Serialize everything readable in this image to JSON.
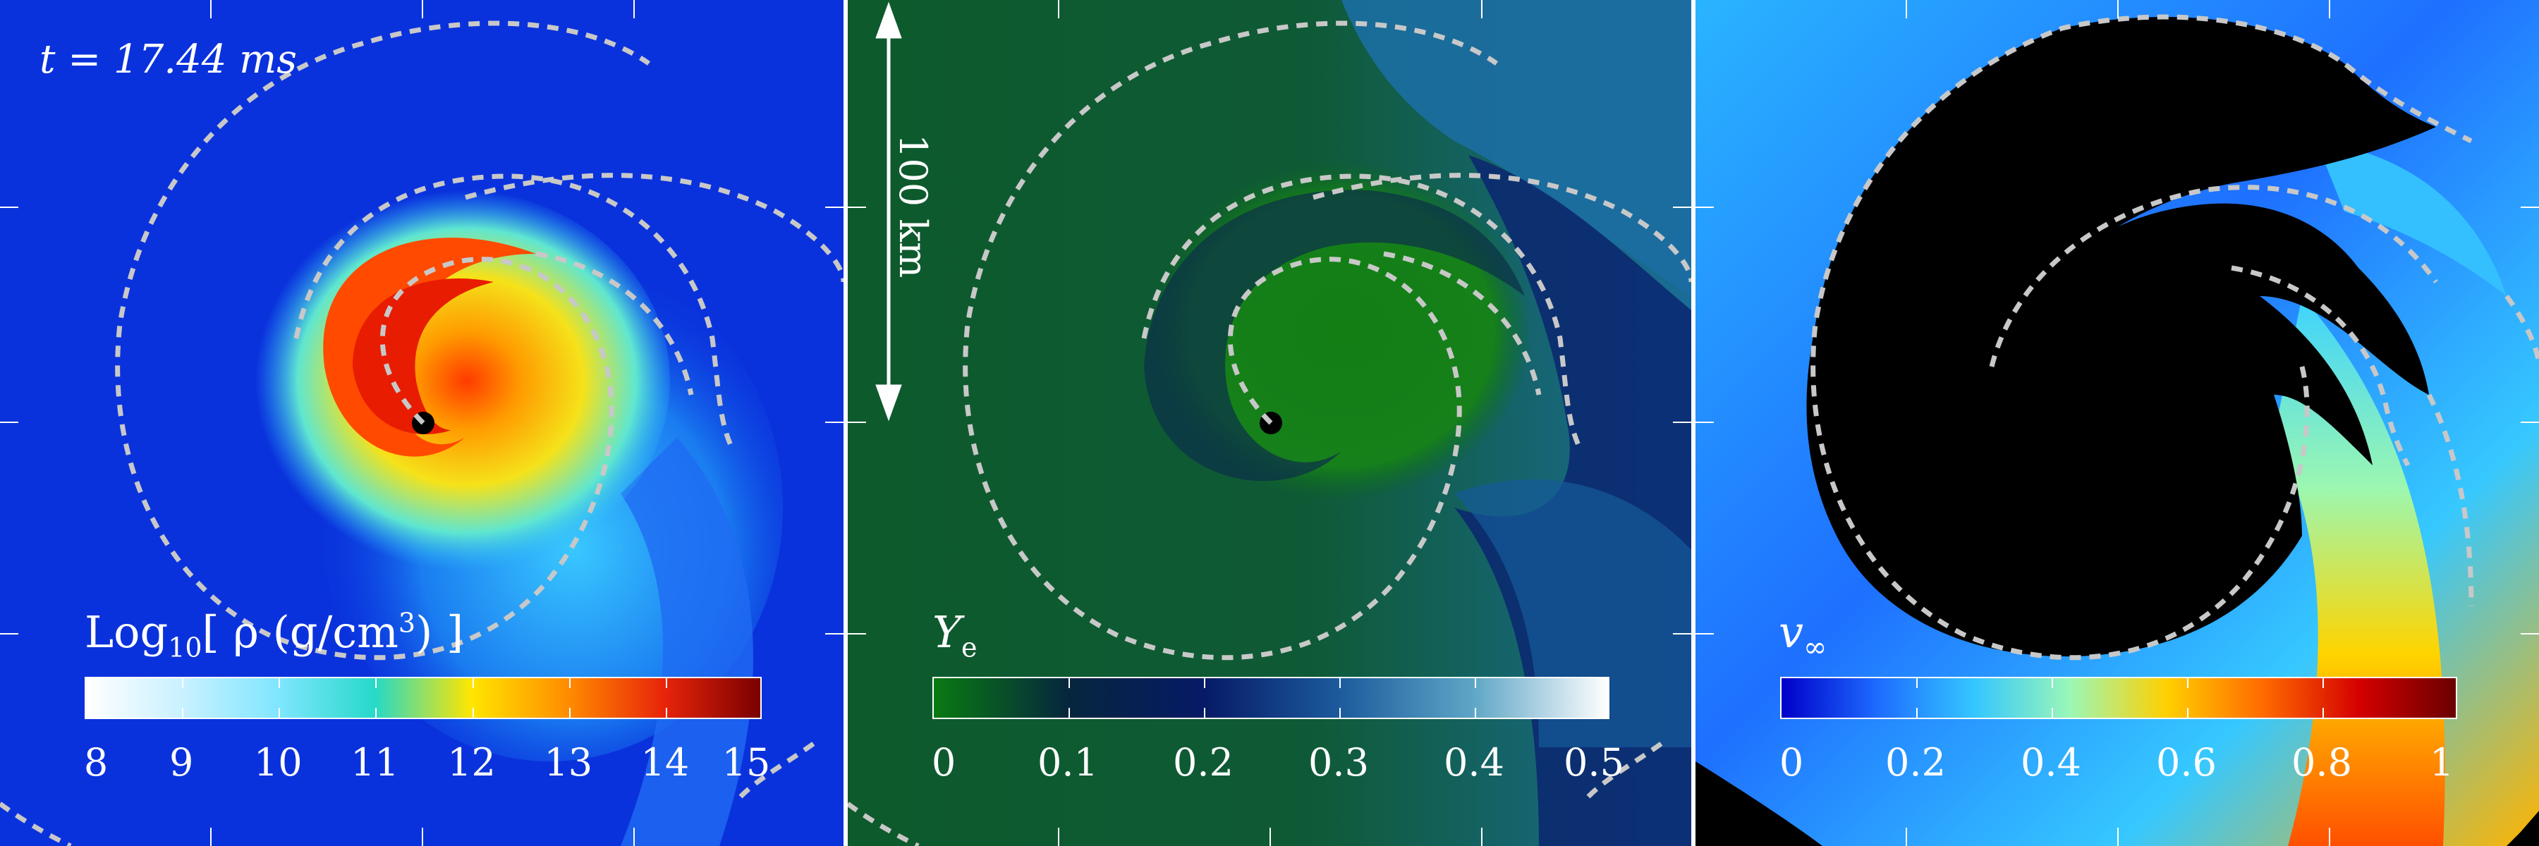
{
  "panels": [
    {
      "name": "density",
      "time_label": "t = 17.44 ms",
      "colorbar": {
        "title_prefix": "Log",
        "title_sub": "10",
        "title_main": "[ ρ (g/cm",
        "title_sup": "3",
        "title_end": ") ]",
        "tick_labels": [
          "8",
          "9",
          "10",
          "11",
          "12",
          "13",
          "14",
          "15"
        ],
        "colors": [
          "#ffffff",
          "#c9f1ff",
          "#7fe6ff",
          "#26d9c8",
          "#ffe600",
          "#ff8c00",
          "#e8240a",
          "#7a0000"
        ]
      }
    },
    {
      "name": "electron-fraction",
      "scale_bar_label": "100 km",
      "colorbar": {
        "title_main": "Y",
        "title_sub": "e",
        "tick_labels": [
          "0",
          "0.1",
          "0.2",
          "0.3",
          "0.4",
          "0.5"
        ],
        "colors": [
          "#0a7a12",
          "#06263e",
          "#061a66",
          "#1c5a9c",
          "#5ea6c6",
          "#ffffff"
        ]
      }
    },
    {
      "name": "asymptotic-velocity",
      "colorbar": {
        "title_main": "v",
        "title_sub": "∞",
        "tick_labels": [
          "0",
          "0.2",
          "0.4",
          "0.6",
          "0.8",
          "1"
        ],
        "colors": [
          "#0000c8",
          "#1e6cff",
          "#34c6ff",
          "#9bf7b6",
          "#ffd000",
          "#ff6a00",
          "#d40000",
          "#6a0000"
        ]
      }
    }
  ]
}
